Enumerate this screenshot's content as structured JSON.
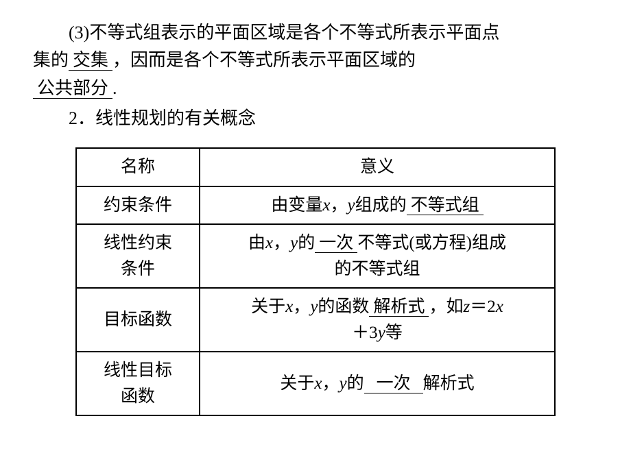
{
  "intro": {
    "item_num": "(3)",
    "seg1": "不等式组表示的平面区域是各个不等式所表示平面点",
    "seg2_prefix": "集的",
    "blank1": "交集",
    "seg2_suffix": "，因而是各个不等式所表示平面区域的",
    "blank2": "公共部分",
    "period": "."
  },
  "heading": "2．线性规划的有关概念",
  "table": {
    "header": {
      "col1": "名称",
      "col2": "意义"
    },
    "rows": [
      {
        "name": "约束条件",
        "pre": "由变量",
        "var1": "x",
        "comma": "，",
        "var2": "y",
        "mid": "组成的",
        "blank": "不等式组",
        "post": ""
      },
      {
        "name_l1": "线性约束",
        "name_l2": "条件",
        "pre": "由",
        "var1": "x",
        "comma": "，",
        "var2": "y",
        "mid1": "的",
        "blank": "一次",
        "mid2": "不等式(或方程)组成",
        "line2": "的不等式组"
      },
      {
        "name": "目标函数",
        "pre": "关于",
        "var1": "x",
        "comma": "，",
        "var2": "y",
        "mid": "的函数",
        "blank": "解析式",
        "post1": "，如",
        "zeq": "z",
        "eq": "＝2",
        "xv": "x",
        "line2_pre": "＋3",
        "yv": "y",
        "line2_post": "等"
      },
      {
        "name_l1": "线性目标",
        "name_l2": "函数",
        "pre": "关于",
        "var1": "x",
        "comma": "，",
        "var2": "y",
        "mid": "的",
        "blank": "一次",
        "post": "解析式"
      }
    ]
  }
}
